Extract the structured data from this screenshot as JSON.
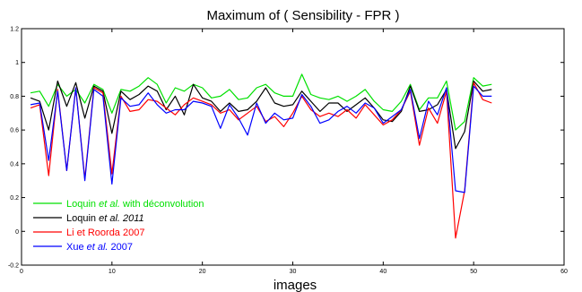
{
  "chart_data": {
    "type": "line",
    "title": "Maximum of ( Sensibility - FPR )",
    "xlabel": "images",
    "ylabel": "",
    "xlim": [
      0,
      60
    ],
    "ylim": [
      -0.2,
      1.2
    ],
    "xticks": [
      "0",
      "10",
      "20",
      "30",
      "40",
      "50",
      "60"
    ],
    "yticks": [
      "-0.2",
      "0",
      "0.2",
      "0.4",
      "0.6",
      "0.8",
      "1",
      "1.2"
    ],
    "legend_location": "bottom-left",
    "x": [
      1,
      2,
      3,
      4,
      5,
      6,
      7,
      8,
      9,
      10,
      11,
      12,
      13,
      14,
      15,
      16,
      17,
      18,
      19,
      20,
      21,
      22,
      23,
      24,
      25,
      26,
      27,
      28,
      29,
      30,
      31,
      32,
      33,
      34,
      35,
      36,
      37,
      38,
      39,
      40,
      41,
      42,
      43,
      44,
      45,
      46,
      47,
      48,
      49,
      50,
      51,
      52
    ],
    "series": [
      {
        "legend_parts": [
          {
            "text": "Loquin ",
            "italic": false
          },
          {
            "text": "et al.",
            "italic": true
          },
          {
            "text": " with déconvolution",
            "italic": false
          }
        ],
        "color": "#00e000",
        "values": [
          0.82,
          0.83,
          0.74,
          0.87,
          0.8,
          0.84,
          0.76,
          0.87,
          0.84,
          0.7,
          0.84,
          0.83,
          0.86,
          0.91,
          0.87,
          0.76,
          0.85,
          0.83,
          0.87,
          0.85,
          0.79,
          0.8,
          0.84,
          0.78,
          0.79,
          0.85,
          0.87,
          0.82,
          0.8,
          0.8,
          0.93,
          0.81,
          0.79,
          0.78,
          0.8,
          0.77,
          0.8,
          0.84,
          0.77,
          0.72,
          0.71,
          0.77,
          0.87,
          0.72,
          0.79,
          0.79,
          0.89,
          0.6,
          0.65,
          0.91,
          0.86,
          0.87
        ]
      },
      {
        "legend_parts": [
          {
            "text": "Loquin ",
            "italic": false
          },
          {
            "text": "et al.",
            "italic": true
          },
          {
            "text": " 2011",
            "italic": true
          }
        ],
        "color": "#000000",
        "values": [
          0.79,
          0.77,
          0.6,
          0.89,
          0.74,
          0.88,
          0.67,
          0.86,
          0.83,
          0.58,
          0.83,
          0.78,
          0.81,
          0.86,
          0.83,
          0.72,
          0.8,
          0.69,
          0.87,
          0.79,
          0.77,
          0.71,
          0.76,
          0.71,
          0.72,
          0.77,
          0.85,
          0.76,
          0.74,
          0.75,
          0.83,
          0.77,
          0.71,
          0.76,
          0.76,
          0.71,
          0.75,
          0.79,
          0.73,
          0.66,
          0.65,
          0.71,
          0.86,
          0.71,
          0.72,
          0.75,
          0.84,
          0.49,
          0.59,
          0.89,
          0.83,
          0.84
        ]
      },
      {
        "legend_parts": [
          {
            "text": "Li et Roorda 2007",
            "italic": false
          }
        ],
        "color": "#ff0000",
        "values": [
          0.73,
          0.75,
          0.33,
          0.84,
          0.36,
          0.85,
          0.31,
          0.85,
          0.82,
          0.34,
          0.8,
          0.71,
          0.72,
          0.78,
          0.77,
          0.73,
          0.69,
          0.75,
          0.79,
          0.77,
          0.75,
          0.7,
          0.72,
          0.66,
          0.7,
          0.74,
          0.65,
          0.68,
          0.62,
          0.7,
          0.8,
          0.72,
          0.68,
          0.7,
          0.68,
          0.72,
          0.67,
          0.75,
          0.69,
          0.63,
          0.66,
          0.72,
          0.83,
          0.51,
          0.73,
          0.64,
          0.83,
          -0.04,
          0.24,
          0.88,
          0.78,
          0.76
        ]
      },
      {
        "legend_parts": [
          {
            "text": "Xue ",
            "italic": false
          },
          {
            "text": "et al.",
            "italic": true
          },
          {
            "text": " 2007",
            "italic": false
          }
        ],
        "color": "#0000ff",
        "values": [
          0.75,
          0.76,
          0.42,
          0.83,
          0.36,
          0.85,
          0.3,
          0.84,
          0.8,
          0.28,
          0.79,
          0.74,
          0.75,
          0.82,
          0.75,
          0.7,
          0.72,
          0.72,
          0.77,
          0.76,
          0.74,
          0.61,
          0.75,
          0.67,
          0.57,
          0.76,
          0.64,
          0.7,
          0.66,
          0.67,
          0.81,
          0.74,
          0.64,
          0.66,
          0.71,
          0.74,
          0.7,
          0.76,
          0.73,
          0.64,
          0.68,
          0.72,
          0.84,
          0.55,
          0.77,
          0.69,
          0.85,
          0.24,
          0.23,
          0.86,
          0.8,
          0.8
        ]
      }
    ]
  }
}
